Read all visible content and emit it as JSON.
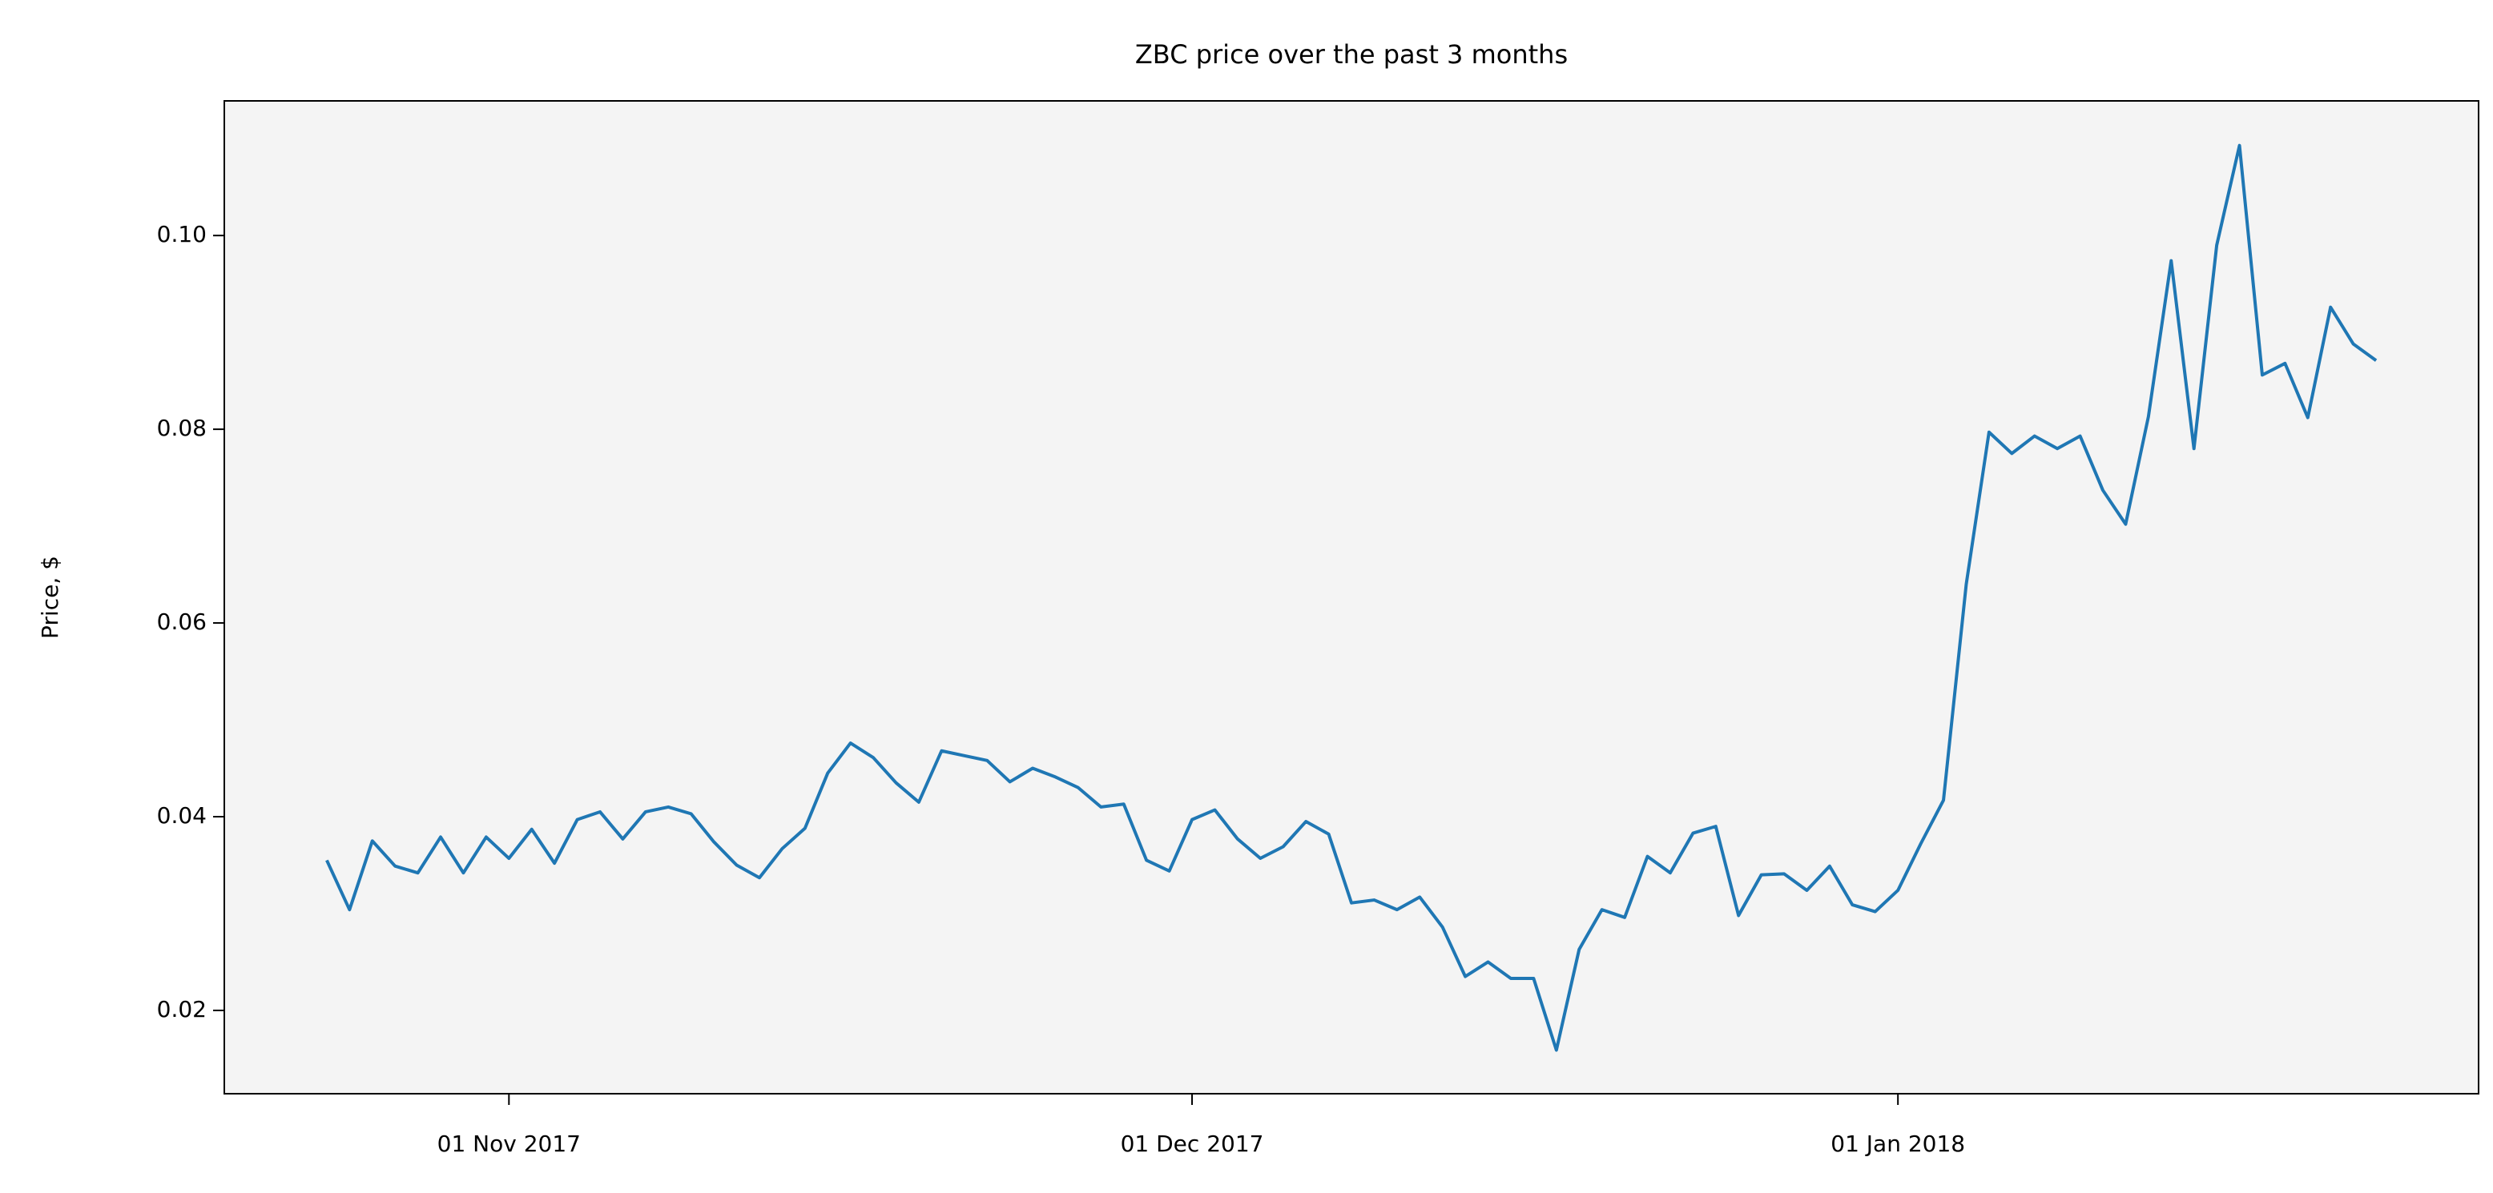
{
  "chart_data": {
    "type": "line",
    "title": "ZBC price over the past 3 months",
    "y_label": "Price, $",
    "x": [
      "2017-10-24",
      "2017-10-25",
      "2017-10-26",
      "2017-10-27",
      "2017-10-28",
      "2017-10-29",
      "2017-10-30",
      "2017-10-31",
      "2017-11-01",
      "2017-11-02",
      "2017-11-03",
      "2017-11-04",
      "2017-11-05",
      "2017-11-06",
      "2017-11-07",
      "2017-11-08",
      "2017-11-09",
      "2017-11-10",
      "2017-11-11",
      "2017-11-12",
      "2017-11-13",
      "2017-11-14",
      "2017-11-15",
      "2017-11-16",
      "2017-11-17",
      "2017-11-18",
      "2017-11-19",
      "2017-11-20",
      "2017-11-21",
      "2017-11-22",
      "2017-11-23",
      "2017-11-24",
      "2017-11-25",
      "2017-11-26",
      "2017-11-27",
      "2017-11-28",
      "2017-11-29",
      "2017-11-30",
      "2017-12-01",
      "2017-12-02",
      "2017-12-03",
      "2017-12-04",
      "2017-12-05",
      "2017-12-06",
      "2017-12-07",
      "2017-12-08",
      "2017-12-09",
      "2017-12-10",
      "2017-12-11",
      "2017-12-12",
      "2017-12-13",
      "2017-12-14",
      "2017-12-15",
      "2017-12-16",
      "2017-12-17",
      "2017-12-18",
      "2017-12-19",
      "2017-12-20",
      "2017-12-21",
      "2017-12-22",
      "2017-12-23",
      "2017-12-24",
      "2017-12-25",
      "2017-12-26",
      "2017-12-27",
      "2017-12-28",
      "2017-12-29",
      "2017-12-30",
      "2017-12-31",
      "2018-01-01",
      "2018-01-02",
      "2018-01-03",
      "2018-01-04",
      "2018-01-05",
      "2018-01-06",
      "2018-01-07",
      "2018-01-08",
      "2018-01-09",
      "2018-01-10",
      "2018-01-11",
      "2018-01-12",
      "2018-01-13",
      "2018-01-14",
      "2018-01-15",
      "2018-01-16",
      "2018-01-17",
      "2018-01-18",
      "2018-01-19",
      "2018-01-20",
      "2018-01-21",
      "2018-01-22"
    ],
    "series": [
      {
        "color": "#1f77b4",
        "values": [
          0.0355,
          0.0304,
          0.0375,
          0.0349,
          0.0342,
          0.0379,
          0.0342,
          0.0379,
          0.0357,
          0.0387,
          0.0352,
          0.0397,
          0.0405,
          0.0377,
          0.0405,
          0.041,
          0.0403,
          0.0374,
          0.035,
          0.0337,
          0.0367,
          0.0388,
          0.0445,
          0.0476,
          0.0461,
          0.0435,
          0.0415,
          0.0468,
          0.0463,
          0.0458,
          0.0436,
          0.045,
          0.0441,
          0.043,
          0.041,
          0.0413,
          0.0355,
          0.0344,
          0.0397,
          0.0407,
          0.0377,
          0.0357,
          0.0369,
          0.0395,
          0.0382,
          0.0311,
          0.0314,
          0.0304,
          0.0317,
          0.0286,
          0.0235,
          0.025,
          0.0233,
          0.0233,
          0.0159,
          0.0263,
          0.0304,
          0.0296,
          0.0359,
          0.0342,
          0.0383,
          0.039,
          0.0298,
          0.034,
          0.0341,
          0.0324,
          0.0349,
          0.0309,
          0.0302,
          0.0324,
          0.0372,
          0.0417,
          0.064,
          0.0797,
          0.0775,
          0.0793,
          0.078,
          0.0793,
          0.0737,
          0.0702,
          0.0813,
          0.0974,
          0.078,
          0.099,
          0.1093,
          0.0856,
          0.0868,
          0.0812,
          0.0926,
          0.0888,
          0.0871
        ]
      }
    ],
    "xlim": [
      "2017-10-19T12:00:00Z",
      "2018-01-26T12:00:00Z"
    ],
    "xticks": [
      {
        "value": "2017-11-01",
        "label": "01 Nov 2017"
      },
      {
        "value": "2017-12-01",
        "label": "01 Dec 2017"
      },
      {
        "value": "2018-01-01",
        "label": "01 Jan 2018"
      }
    ],
    "ylim": [
      0.0114,
      0.1139
    ],
    "yticks": [
      0.02,
      0.04,
      0.06,
      0.08,
      {
        "value": 0.1,
        "label": "0.10"
      }
    ],
    "background": "#f4f4f4"
  }
}
